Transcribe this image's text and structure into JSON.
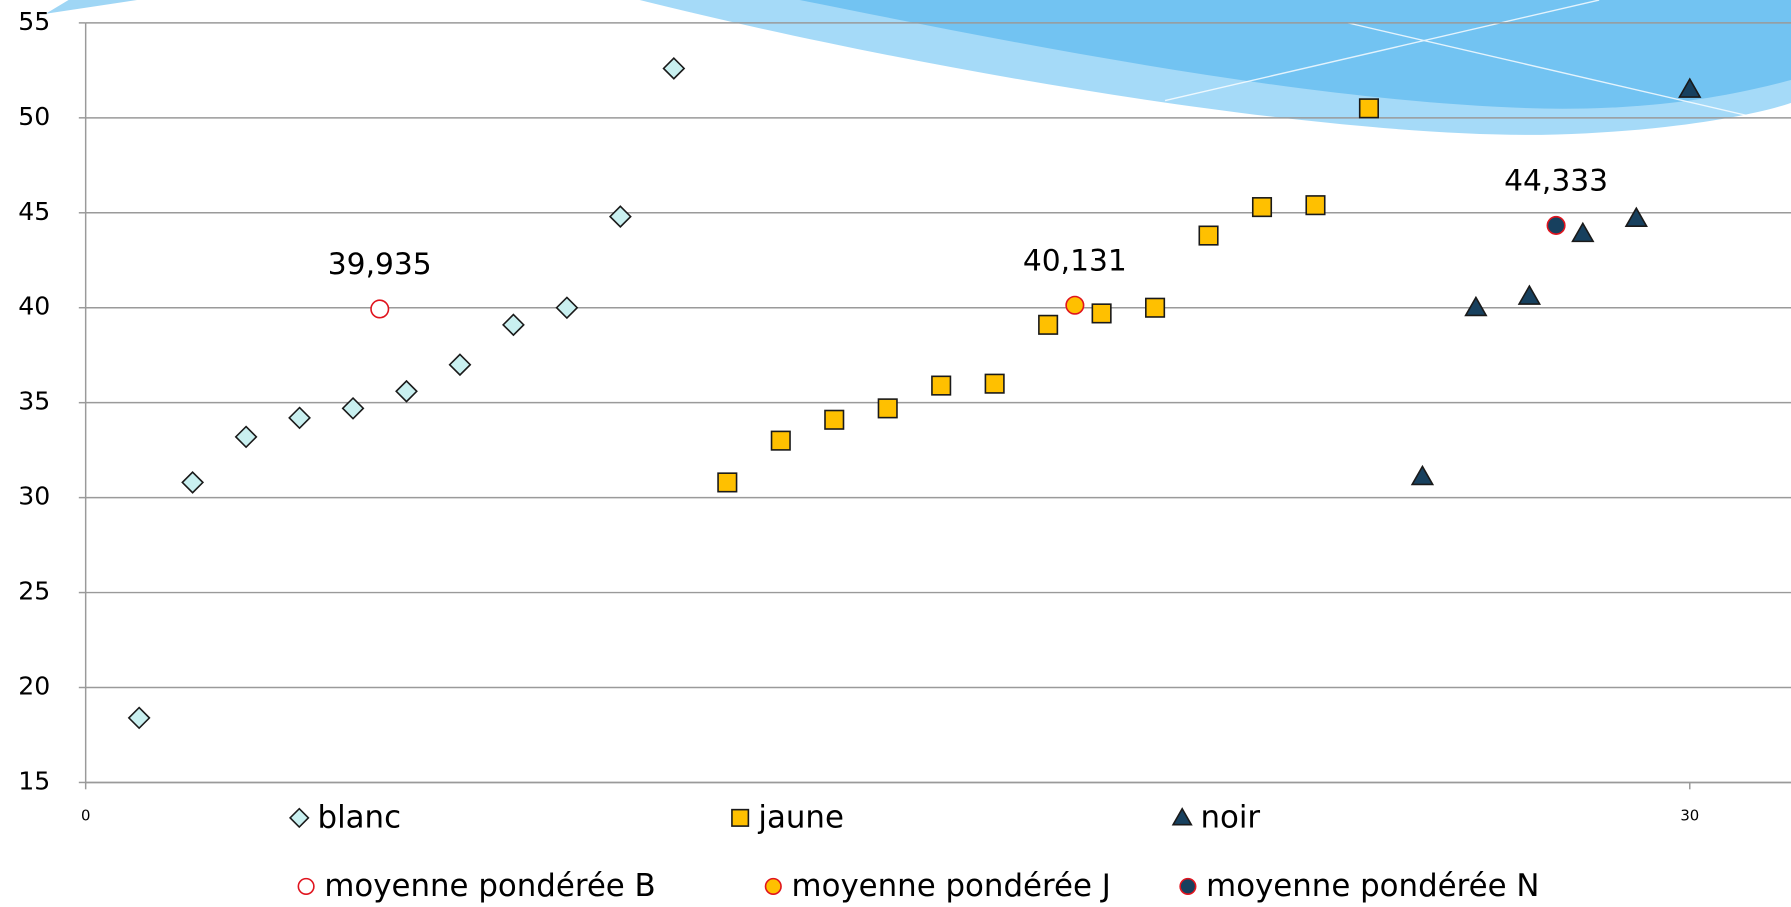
{
  "chart_data": {
    "type": "scatter",
    "xlim": [
      0,
      32
    ],
    "xticks": [
      0,
      30
    ],
    "ylim": [
      15,
      55
    ],
    "yticks": [
      15,
      20,
      25,
      30,
      35,
      40,
      45,
      50,
      55
    ],
    "grid": true,
    "legend": "bottom",
    "series": [
      {
        "name": "blanc",
        "color": "#c9f0f0",
        "marker": "diamond",
        "x": [
          1,
          2,
          3,
          4,
          5,
          6,
          7,
          8,
          9,
          10,
          11
        ],
        "values": [
          18.4,
          30.8,
          33.2,
          34.2,
          34.7,
          35.6,
          37.0,
          39.1,
          40.0,
          44.8,
          52.6
        ]
      },
      {
        "name": "jaune",
        "color": "#ffc000",
        "marker": "square",
        "x": [
          12,
          13,
          14,
          15,
          16,
          17,
          18,
          19,
          20,
          21,
          22,
          23,
          24
        ],
        "values": [
          30.8,
          33.0,
          34.1,
          34.7,
          35.9,
          36.0,
          39.1,
          39.7,
          40.0,
          43.8,
          45.3,
          45.4,
          50.5
        ]
      },
      {
        "name": "noir",
        "color": "#17405e",
        "marker": "triangle",
        "x": [
          25,
          26,
          27,
          28,
          29,
          30
        ],
        "values": [
          31.1,
          40.0,
          40.6,
          43.9,
          44.7,
          51.5
        ]
      },
      {
        "name": "moyenne pondérée B",
        "color": "#ffffff",
        "marker": "circle",
        "x": [
          5.5
        ],
        "values": [
          39.935
        ],
        "value_labels": [
          "39,935"
        ]
      },
      {
        "name": "moyenne pondérée J",
        "color": "#ffc000",
        "marker": "circle",
        "x": [
          18.5
        ],
        "values": [
          40.131
        ],
        "value_labels": [
          "40,131"
        ]
      },
      {
        "name": "moyenne pondérée N",
        "color": "#17405e",
        "marker": "circle",
        "x": [
          27.5
        ],
        "values": [
          44.333
        ],
        "value_labels": [
          "44,333"
        ]
      }
    ]
  }
}
